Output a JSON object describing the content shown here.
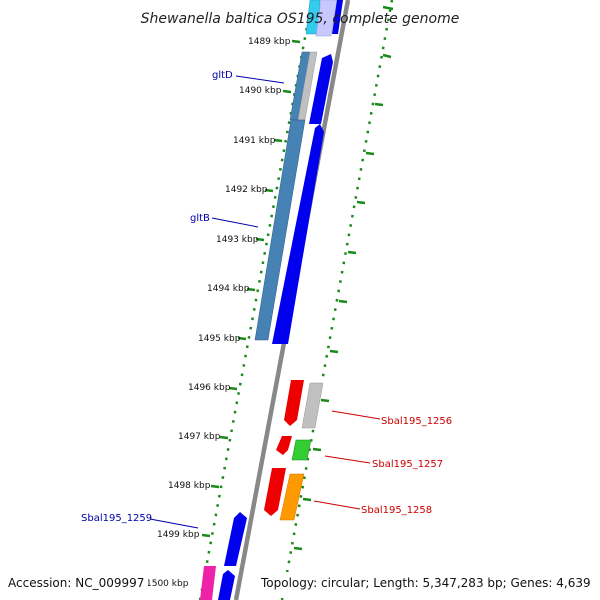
{
  "title": "Shewanella baltica OS195, complete genome",
  "footer": {
    "accession": "Accession: NC_009997",
    "topology": "Topology: circular; Length: 5,347,283 bp; Genes: 4,639"
  },
  "ticks": [
    "1489 kbp",
    "1490 kbp",
    "1491 kbp",
    "1492 kbp",
    "1493 kbp",
    "1494 kbp",
    "1495 kbp",
    "1496 kbp",
    "1497 kbp",
    "1498 kbp",
    "1499 kbp",
    "1500 kbp"
  ],
  "gene_labels": [
    {
      "text": "gltD",
      "color": "#0000aa"
    },
    {
      "text": "gltB",
      "color": "#0000aa"
    },
    {
      "text": "Sbal195_1256",
      "color": "#cc0000"
    },
    {
      "text": "Sbal195_1257",
      "color": "#cc0000"
    },
    {
      "text": "Sbal195_1258",
      "color": "#cc0000"
    },
    {
      "text": "Sbal195_1259",
      "color": "#0000aa"
    }
  ],
  "colors": {
    "backbone": "#888888",
    "ring_dots": "#1a8a1a",
    "gltD": "#4682b4",
    "gltB": "#4682b4",
    "forward_blue": "#0000ee",
    "cyan": "#33ccee",
    "lavender": "#c8c8ff",
    "grey": "#c0c0c0",
    "red": "#ee0000",
    "green": "#33cc33",
    "orange": "#ff9900",
    "magenta": "#ee22aa"
  }
}
